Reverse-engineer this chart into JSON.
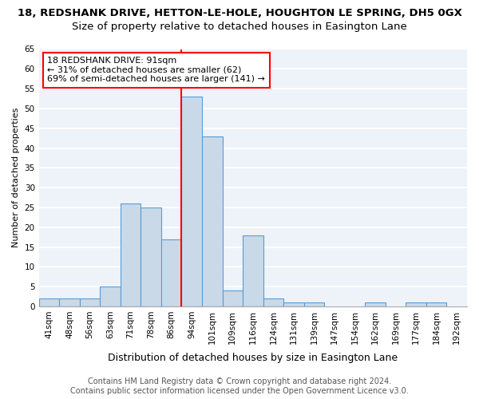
{
  "title": "18, REDSHANK DRIVE, HETTON-LE-HOLE, HOUGHTON LE SPRING, DH5 0GX",
  "subtitle": "Size of property relative to detached houses in Easington Lane",
  "xlabel": "Distribution of detached houses by size in Easington Lane",
  "ylabel": "Number of detached properties",
  "categories": [
    "41sqm",
    "48sqm",
    "56sqm",
    "63sqm",
    "71sqm",
    "78sqm",
    "86sqm",
    "94sqm",
    "101sqm",
    "109sqm",
    "116sqm",
    "124sqm",
    "131sqm",
    "139sqm",
    "147sqm",
    "154sqm",
    "162sqm",
    "169sqm",
    "177sqm",
    "184sqm",
    "192sqm"
  ],
  "values": [
    2,
    2,
    2,
    5,
    26,
    25,
    17,
    53,
    43,
    4,
    18,
    2,
    1,
    1,
    0,
    0,
    1,
    0,
    1,
    1,
    0
  ],
  "bar_color": "#c9d9e8",
  "bar_edge_color": "#5b9bd5",
  "bar_linewidth": 0.8,
  "annotation_text": "18 REDSHANK DRIVE: 91sqm\n← 31% of detached houses are smaller (62)\n69% of semi-detached houses are larger (141) →",
  "annotation_box_color": "white",
  "annotation_box_edge_color": "red",
  "vline_color": "red",
  "vline_x_index": 7,
  "ylim": [
    0,
    65
  ],
  "yticks": [
    0,
    5,
    10,
    15,
    20,
    25,
    30,
    35,
    40,
    45,
    50,
    55,
    60,
    65
  ],
  "bg_color": "#eef2f9",
  "grid_color": "white",
  "footer": "Contains HM Land Registry data © Crown copyright and database right 2024.\nContains public sector information licensed under the Open Government Licence v3.0.",
  "title_fontsize": 9.5,
  "subtitle_fontsize": 9.5,
  "xlabel_fontsize": 9,
  "ylabel_fontsize": 8,
  "tick_fontsize": 7.5,
  "annotation_fontsize": 8,
  "footer_fontsize": 7
}
